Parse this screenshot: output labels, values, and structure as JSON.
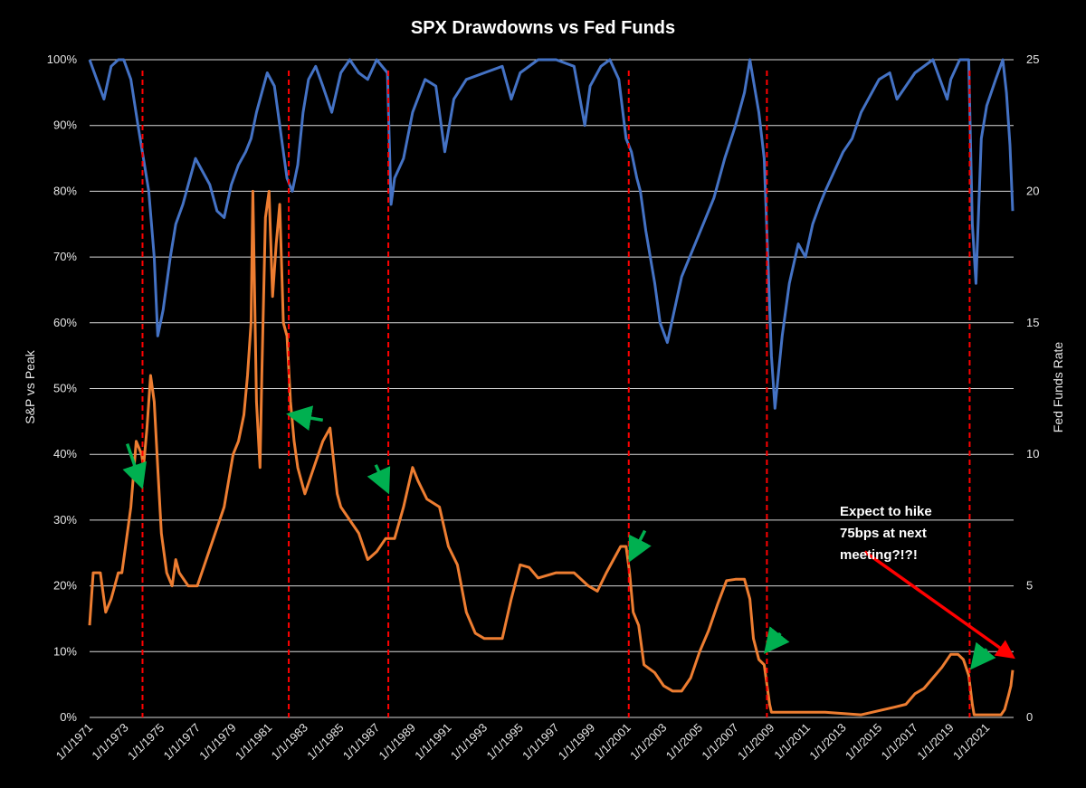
{
  "chart_data": {
    "type": "line",
    "title": "SPX Drawdowns vs Fed Funds",
    "y_left_label": "S&P vs Peak",
    "y_right_label": "Fed Funds Rate",
    "y_left_range": [
      0,
      100
    ],
    "y_left_ticks": [
      "0%",
      "10%",
      "20%",
      "30%",
      "40%",
      "50%",
      "60%",
      "70%",
      "80%",
      "90%",
      "100%"
    ],
    "y_right_range": [
      0,
      25
    ],
    "y_right_ticks": [
      "0",
      "5",
      "10",
      "15",
      "20",
      "25"
    ],
    "x_range": [
      1971.0,
      2022.5
    ],
    "x_tick_labels": [
      "1/1/1971",
      "1/1/1973",
      "1/1/1975",
      "1/1/1977",
      "1/1/1979",
      "1/1/1981",
      "1/1/1983",
      "1/1/1985",
      "1/1/1987",
      "1/1/1989",
      "1/1/1991",
      "1/1/1993",
      "1/1/1995",
      "1/1/1997",
      "1/1/1999",
      "1/1/2001",
      "1/1/2003",
      "1/1/2005",
      "1/1/2007",
      "1/1/2009",
      "1/1/2011",
      "1/1/2013",
      "1/1/2015",
      "1/1/2017",
      "1/1/2019",
      "1/1/2021"
    ],
    "grid": "horizontal",
    "series": [
      {
        "name": "S&P vs Peak",
        "axis": "left",
        "color": "#4472c4",
        "x": [
          1971.0,
          1971.4,
          1971.8,
          1972.2,
          1972.6,
          1972.9,
          1973.3,
          1973.7,
          1974.0,
          1974.3,
          1974.6,
          1974.8,
          1975.1,
          1975.5,
          1975.8,
          1976.2,
          1976.6,
          1976.9,
          1977.3,
          1977.7,
          1978.1,
          1978.5,
          1978.9,
          1979.3,
          1979.7,
          1980.0,
          1980.3,
          1980.6,
          1980.9,
          1981.3,
          1981.7,
          1982.0,
          1982.3,
          1982.6,
          1982.9,
          1983.2,
          1983.6,
          1984.0,
          1984.5,
          1985.0,
          1985.5,
          1986.0,
          1986.5,
          1987.0,
          1987.6,
          1987.8,
          1988.0,
          1988.5,
          1989.0,
          1989.7,
          1990.3,
          1990.8,
          1991.3,
          1992.0,
          1993.0,
          1994.0,
          1994.5,
          1995.0,
          1996.0,
          1997.0,
          1998.0,
          1998.6,
          1998.9,
          1999.5,
          2000.0,
          2000.5,
          2000.9,
          2001.2,
          2001.5,
          2001.7,
          2002.0,
          2002.5,
          2002.8,
          2003.2,
          2003.6,
          2004.0,
          2004.6,
          2005.2,
          2005.8,
          2006.4,
          2007.0,
          2007.5,
          2007.8,
          2008.3,
          2008.6,
          2008.8,
          2009.0,
          2009.2,
          2009.6,
          2010.0,
          2010.5,
          2010.9,
          2011.3,
          2011.7,
          2012.0,
          2012.5,
          2013.0,
          2013.5,
          2014.0,
          2015.0,
          2015.6,
          2016.0,
          2016.5,
          2017.0,
          2018.0,
          2018.8,
          2019.0,
          2019.5,
          2020.0,
          2020.2,
          2020.4,
          2020.7,
          2021.0,
          2021.5,
          2021.9,
          2022.1,
          2022.3,
          2022.45
        ],
        "values": [
          100,
          97,
          94,
          99,
          100,
          100,
          97,
          90,
          85,
          80,
          70,
          58,
          62,
          70,
          75,
          78,
          82,
          85,
          83,
          81,
          77,
          76,
          81,
          84,
          86,
          88,
          92,
          95,
          98,
          96,
          88,
          82,
          80,
          84,
          92,
          97,
          99,
          96,
          92,
          98,
          100,
          98,
          97,
          100,
          98,
          78,
          82,
          85,
          92,
          97,
          96,
          86,
          94,
          97,
          98,
          99,
          94,
          98,
          100,
          100,
          99,
          90,
          96,
          99,
          100,
          97,
          88,
          86,
          82,
          80,
          74,
          66,
          60,
          57,
          62,
          67,
          71,
          75,
          79,
          85,
          90,
          95,
          100,
          92,
          85,
          70,
          55,
          47,
          58,
          66,
          72,
          70,
          75,
          78,
          80,
          83,
          86,
          88,
          92,
          97,
          98,
          94,
          96,
          98,
          100,
          94,
          97,
          100,
          100,
          75,
          66,
          88,
          93,
          97,
          100,
          95,
          87,
          77
        ]
      },
      {
        "name": "Fed Funds Rate",
        "axis": "right",
        "color": "#ed7d31",
        "x": [
          1971.0,
          1971.2,
          1971.6,
          1971.9,
          1972.2,
          1972.4,
          1972.6,
          1972.8,
          1973.0,
          1973.3,
          1973.6,
          1973.9,
          1974.0,
          1974.2,
          1974.4,
          1974.6,
          1974.8,
          1975.0,
          1975.3,
          1975.6,
          1975.8,
          1976.0,
          1976.5,
          1977.0,
          1977.5,
          1978.0,
          1978.5,
          1979.0,
          1979.3,
          1979.6,
          1979.8,
          1980.0,
          1980.1,
          1980.3,
          1980.5,
          1980.6,
          1980.8,
          1981.0,
          1981.2,
          1981.4,
          1981.6,
          1981.8,
          1982.0,
          1982.2,
          1982.4,
          1982.6,
          1982.8,
          1983.0,
          1983.5,
          1984.0,
          1984.4,
          1984.8,
          1985.0,
          1985.5,
          1986.0,
          1986.5,
          1987.0,
          1987.5,
          1988.0,
          1988.5,
          1989.0,
          1989.3,
          1989.8,
          1990.5,
          1991.0,
          1991.5,
          1992.0,
          1992.5,
          1993.0,
          1994.0,
          1994.5,
          1995.0,
          1995.5,
          1996.0,
          1997.0,
          1998.0,
          1998.8,
          1999.3,
          1999.8,
          2000.2,
          2000.6,
          2000.9,
          2001.1,
          2001.3,
          2001.6,
          2001.9,
          2002.5,
          2003.0,
          2003.5,
          2004.0,
          2004.5,
          2005.0,
          2005.5,
          2006.0,
          2006.5,
          2007.0,
          2007.5,
          2007.8,
          2008.0,
          2008.3,
          2008.6,
          2008.9,
          2009.0,
          2010.0,
          2012.0,
          2014.0,
          2015.9,
          2016.5,
          2017.0,
          2017.5,
          2018.0,
          2018.5,
          2019.0,
          2019.4,
          2019.7,
          2020.0,
          2020.2,
          2020.3,
          2021.0,
          2021.8,
          2022.0,
          2022.2,
          2022.35,
          2022.45
        ],
        "values": [
          3.5,
          5.5,
          5.5,
          4.0,
          4.5,
          5.0,
          5.5,
          5.5,
          6.5,
          8.0,
          10.5,
          10.0,
          9.5,
          11.0,
          13.0,
          12.0,
          9.5,
          7.0,
          5.5,
          5.0,
          6.0,
          5.5,
          5.0,
          5.0,
          6.0,
          7.0,
          8.0,
          10.0,
          10.5,
          11.5,
          13.0,
          15.0,
          20.0,
          12.0,
          9.5,
          13.0,
          19.0,
          20.0,
          16.0,
          18.0,
          19.5,
          15.0,
          14.5,
          12.0,
          10.5,
          9.5,
          9.0,
          8.5,
          9.5,
          10.5,
          11.0,
          8.5,
          8.0,
          7.5,
          7.0,
          6.0,
          6.3,
          6.8,
          6.8,
          8.0,
          9.5,
          9.0,
          8.3,
          8.0,
          6.5,
          5.8,
          4.0,
          3.2,
          3.0,
          3.0,
          4.5,
          5.8,
          5.7,
          5.3,
          5.5,
          5.5,
          5.0,
          4.8,
          5.5,
          6.0,
          6.5,
          6.5,
          5.5,
          4.0,
          3.5,
          2.0,
          1.7,
          1.2,
          1.0,
          1.0,
          1.5,
          2.5,
          3.3,
          4.3,
          5.2,
          5.25,
          5.25,
          4.5,
          3.0,
          2.2,
          2.0,
          0.5,
          0.2,
          0.2,
          0.2,
          0.1,
          0.4,
          0.5,
          0.9,
          1.1,
          1.5,
          1.9,
          2.4,
          2.4,
          2.2,
          1.6,
          0.5,
          0.1,
          0.1,
          0.1,
          0.3,
          0.8,
          1.2,
          1.8
        ]
      }
    ],
    "vlines_x": [
      1973.95,
      1982.1,
      1987.65,
      2001.05,
      2008.75,
      2020.05
    ],
    "annotations": [
      {
        "text_lines": [
          "Expect to hike",
          "75bps at next",
          "meeting?!?!"
        ]
      }
    ],
    "green_arrows": [
      {
        "from": [
          1973.1,
          10.4
        ],
        "to": [
          1973.85,
          8.9
        ]
      },
      {
        "from": [
          1986.95,
          9.6
        ],
        "to": [
          1987.55,
          8.7
        ]
      },
      {
        "from": [
          1984.0,
          11.3
        ],
        "to": [
          1982.3,
          11.5
        ]
      },
      {
        "from": [
          2001.95,
          7.1
        ],
        "to": [
          2001.2,
          6.1
        ]
      },
      {
        "from": [
          2009.5,
          3.2
        ],
        "to": [
          2008.8,
          2.6
        ]
      },
      {
        "from": [
          2021.0,
          2.6
        ],
        "to": [
          2020.3,
          2.0
        ]
      }
    ],
    "red_arrow": {
      "from": [
        2014.2,
        6.3
      ],
      "to": [
        2022.45,
        2.3
      ]
    }
  }
}
